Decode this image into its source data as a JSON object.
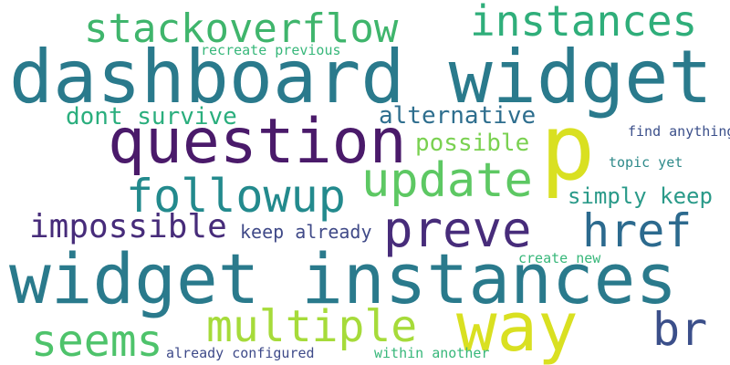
{
  "words": [
    {
      "text": "widget instances",
      "color": "#2a7a8c"
    },
    {
      "text": "dashboard widget",
      "color": "#2a7a8c"
    },
    {
      "text": "question",
      "color": "#4a1a6a"
    },
    {
      "text": "p",
      "color": "#d9e021"
    },
    {
      "text": "way",
      "color": "#d9e021"
    },
    {
      "text": "stackoverflow",
      "color": "#3fb56c"
    },
    {
      "text": "instances",
      "color": "#2fae7a"
    },
    {
      "text": "update",
      "color": "#5dc863"
    },
    {
      "text": "followup",
      "color": "#238a8d"
    },
    {
      "text": "multiple",
      "color": "#a6db3a"
    },
    {
      "text": "preve",
      "color": "#472c7a"
    },
    {
      "text": "href",
      "color": "#2c6a8e"
    },
    {
      "text": "seems",
      "color": "#4ec36b"
    },
    {
      "text": "impossible",
      "color": "#472c7a"
    },
    {
      "text": "br",
      "color": "#3b4f8a"
    },
    {
      "text": "alternative",
      "color": "#2e6e8e"
    },
    {
      "text": "possible",
      "color": "#7ad151"
    },
    {
      "text": "dont survive",
      "color": "#2aae7d"
    },
    {
      "text": "simply keep",
      "color": "#2a9a89"
    },
    {
      "text": "keep already",
      "color": "#404a88"
    },
    {
      "text": "recreate previous",
      "color": "#37b77a"
    },
    {
      "text": "find anything",
      "color": "#3b4f8a"
    },
    {
      "text": "topic yet",
      "color": "#2f8a8a"
    },
    {
      "text": "create new",
      "color": "#37b77a"
    },
    {
      "text": "already configured",
      "color": "#3e4a89"
    },
    {
      "text": "within another",
      "color": "#37b77a"
    }
  ]
}
